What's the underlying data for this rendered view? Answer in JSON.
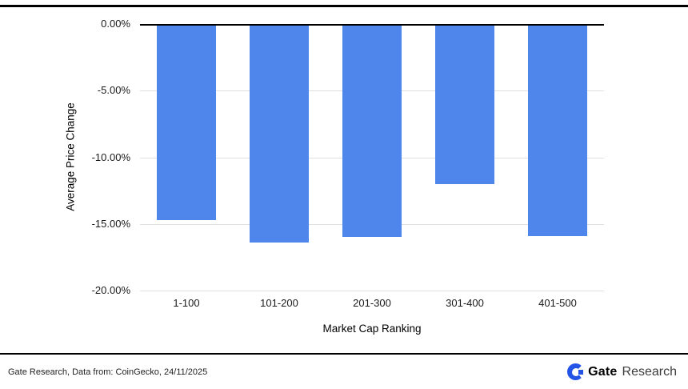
{
  "chart_data": {
    "type": "bar",
    "categories": [
      "1-100",
      "101-200",
      "201-300",
      "301-400",
      "401-500"
    ],
    "values": [
      -14.7,
      -16.4,
      -16.0,
      -12.0,
      -15.9
    ],
    "title": "",
    "xlabel": "Market Cap Ranking",
    "ylabel": "Average Price Change",
    "ylim": [
      -20,
      0
    ],
    "yticks": [
      0,
      -5,
      -10,
      -15,
      -20
    ],
    "ytick_labels": [
      "0.00%",
      "-5.00%",
      "-10.00%",
      "-15.00%",
      "-20.00%"
    ],
    "bar_color": "#4e86ec",
    "grid": true,
    "legend": "none"
  },
  "footer": {
    "caption": "Gate Research, Data from: CoinGecko, 24/11/2025",
    "brand": {
      "name_bold": "Gate",
      "name_light": "Research"
    }
  },
  "colors": {
    "accent": "#4e86ec",
    "logo_blue": "#2354e6",
    "gridline": "#e0e0e0",
    "axis": "#000000"
  }
}
